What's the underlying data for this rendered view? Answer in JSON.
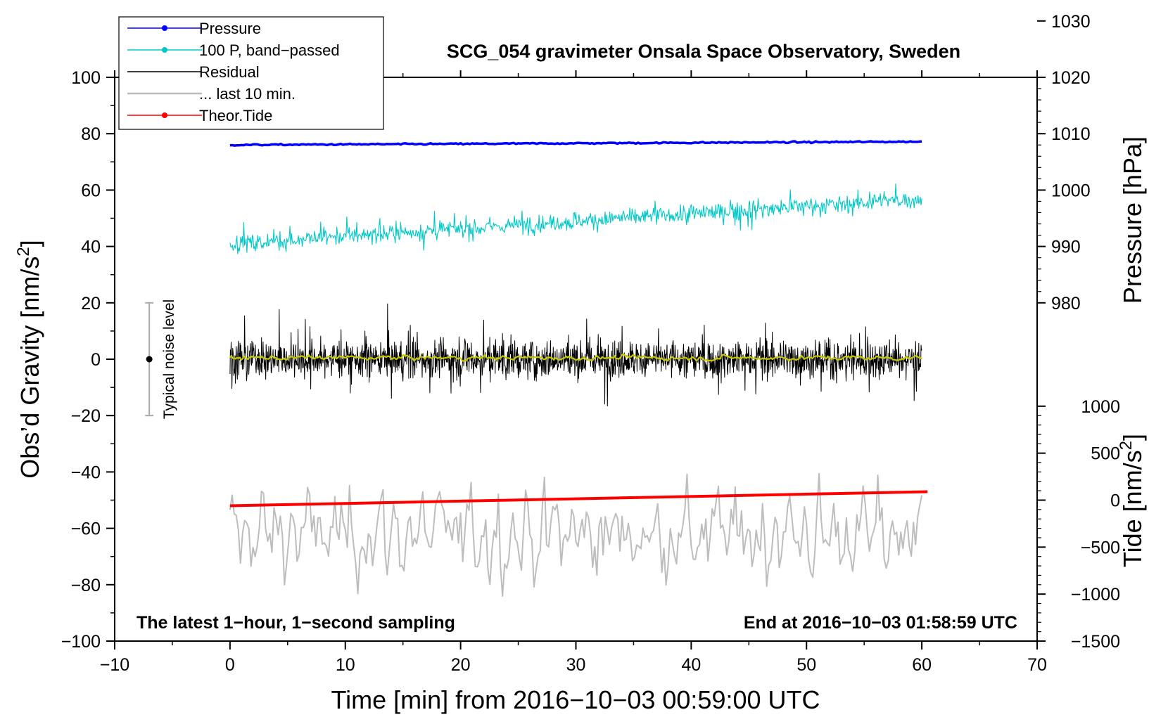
{
  "chart_data": {
    "type": "line",
    "title": "SCG_054 gravimeter Onsala Space Observatory, Sweden",
    "xlabel": "Time [min] from 2016−10−03 00:59:00 UTC",
    "ylabel_main": "Obs’d Gravity [nm/s",
    "ylabel_sup": "2",
    "ylabel_close": "]",
    "ylabel_pressure": "Pressure [hPa]",
    "ylabel_tide": "Tide [nm/s",
    "ylabel_tide_sup": "2",
    "ylabel_tide_close": "]",
    "xlim": [
      -10,
      70
    ],
    "ylim": [
      -100,
      100
    ],
    "x_ticks": [
      -10,
      0,
      10,
      20,
      30,
      40,
      50,
      60,
      70
    ],
    "x_tick_labels": [
      "−10",
      "0",
      "10",
      "20",
      "30",
      "40",
      "50",
      "60",
      "70"
    ],
    "y_ticks": [
      -100,
      -80,
      -60,
      -40,
      -20,
      0,
      20,
      40,
      60,
      80,
      100
    ],
    "y_tick_labels": [
      "−100",
      "−80",
      "−60",
      "−40",
      "−20",
      "0",
      "20",
      "40",
      "60",
      "80",
      "100"
    ],
    "pressure_axis": {
      "ticks": [
        980,
        990,
        1000,
        1010,
        1020,
        1030
      ],
      "tick_labels": [
        "980",
        "990",
        "1000",
        "1010",
        "1020",
        "1030"
      ],
      "gravity_equivalent_at_980": 20,
      "gravity_per_hPa": 2
    },
    "tide_axis": {
      "ticks": [
        -1500,
        -1000,
        -500,
        0,
        500,
        1000
      ],
      "tick_labels": [
        "−1500",
        "−1000",
        "−500",
        "0",
        "500",
        "1000"
      ],
      "gravity_equivalent_at_0": -50,
      "gravity_per_unit": 0.03333
    },
    "legend": [
      {
        "label": "Pressure",
        "color": "#0000ff",
        "marker": true
      },
      {
        "label": "100 P, band−passed",
        "color": "#00c8c8",
        "marker": true
      },
      {
        "label": "Residual",
        "color": "#000000",
        "marker": false
      },
      {
        "label": "... last 10 min.",
        "color": "#bdbdbd",
        "marker": false
      },
      {
        "label": "Theor.Tide",
        "color": "#ff0000",
        "marker": true
      }
    ],
    "legend_position": "top-left",
    "series": [
      {
        "name": "Pressure",
        "color": "#0000ff",
        "x_range": [
          0,
          60
        ],
        "y_start": 76,
        "y_end": 77.2,
        "noise": 0.2
      },
      {
        "name": "100 P, band-passed",
        "color": "#00c8c8",
        "x_range": [
          0,
          60
        ],
        "y_start": 41,
        "y_end": 57,
        "noise": 3.5
      },
      {
        "name": "Residual",
        "color": "#000000",
        "x_range": [
          0,
          60
        ],
        "y_start": 0,
        "y_end": 0,
        "noise": 9
      },
      {
        "name": "... last 10 min.",
        "color": "#bdbdbd",
        "x_range": [
          0,
          60
        ],
        "y_start": -62,
        "y_end": -62,
        "noise": 10
      },
      {
        "name": "Residual smoothed",
        "color": "#c8c800",
        "x_range": [
          0,
          60
        ],
        "y_start": 0.5,
        "y_end": 0.5,
        "noise": 1
      },
      {
        "name": "Theor.Tide",
        "color": "#ff0000",
        "x_range": [
          0,
          60.5
        ],
        "y_start": -52,
        "y_end": -47
      }
    ],
    "noise_bar": {
      "label": "Typical noise level",
      "x": -7,
      "center": 0,
      "low": -20,
      "high": 20
    },
    "annotation_left": "The latest 1−hour, 1−second sampling",
    "annotation_right": "End at 2016−10−03 01:58:59 UTC"
  }
}
